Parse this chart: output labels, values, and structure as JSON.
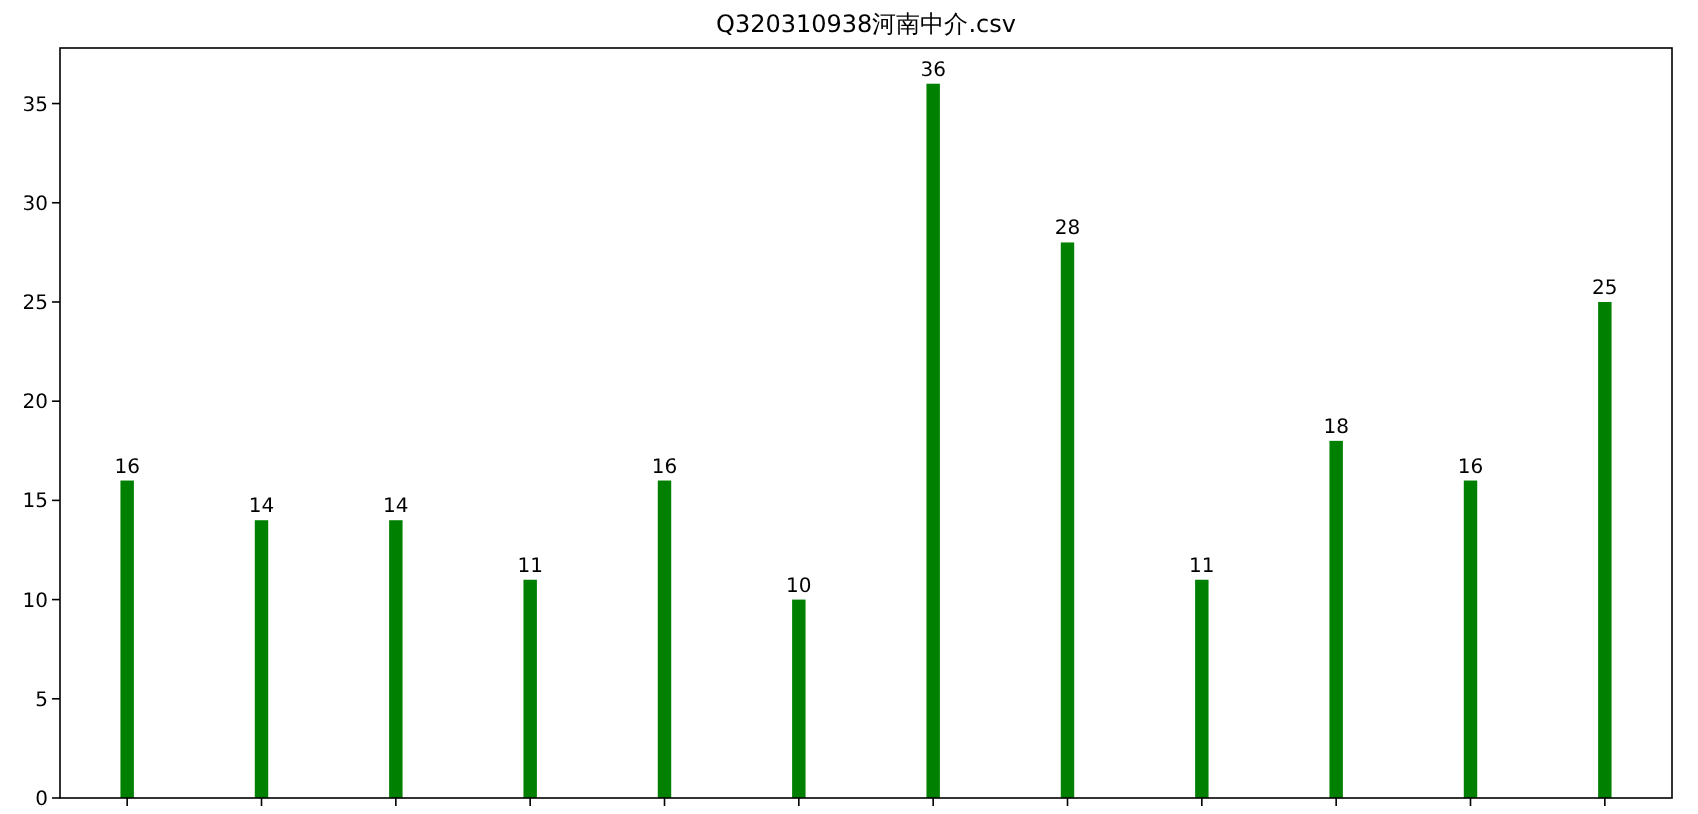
{
  "chart_data": {
    "type": "bar",
    "title": "Q320310938河南中介.csv",
    "categories": [
      null,
      null,
      null,
      null,
      null,
      null,
      null,
      null,
      null,
      null,
      null,
      null
    ],
    "values": [
      16,
      14,
      14,
      11,
      16,
      10,
      36,
      28,
      11,
      18,
      16,
      25
    ],
    "color": "#008000",
    "ylim": [
      0,
      37.8
    ],
    "yticks": [
      0,
      5,
      10,
      15,
      20,
      25,
      30,
      35
    ],
    "data_labels": true,
    "grid": false
  }
}
